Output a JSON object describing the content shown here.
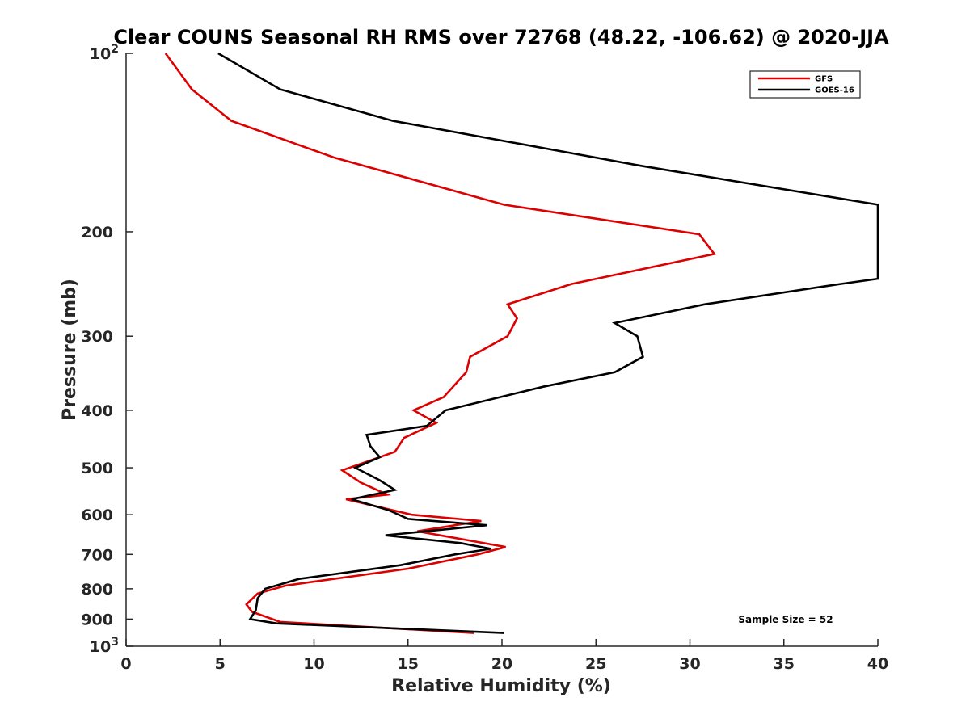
{
  "chart_data": {
    "type": "line",
    "title": "Clear COUNS Seasonal RH RMS over 72768 (48.22, -106.62) @ 2020-JJA",
    "xlabel": "Relative Humidity (%)",
    "ylabel": "Pressure (mb)",
    "xlim": [
      0,
      40
    ],
    "ylim": [
      100,
      1000
    ],
    "yscale": "log",
    "yreversed": true,
    "xticks": [
      0,
      5,
      10,
      15,
      20,
      25,
      30,
      35,
      40
    ],
    "yticks": [
      {
        "value": 100,
        "label": "10",
        "sup": "2"
      },
      {
        "value": 200,
        "label": "200",
        "sup": ""
      },
      {
        "value": 300,
        "label": "300",
        "sup": ""
      },
      {
        "value": 400,
        "label": "400",
        "sup": ""
      },
      {
        "value": 500,
        "label": "500",
        "sup": ""
      },
      {
        "value": 600,
        "label": "600",
        "sup": ""
      },
      {
        "value": 700,
        "label": "700",
        "sup": ""
      },
      {
        "value": 800,
        "label": "800",
        "sup": ""
      },
      {
        "value": 900,
        "label": "900",
        "sup": ""
      },
      {
        "value": 1000,
        "label": "10",
        "sup": "3"
      }
    ],
    "grid": false,
    "legend_position": "top-right",
    "annotation": "Sample Size = 52",
    "series": [
      {
        "name": "GFS",
        "color": "#dd0000",
        "x": [
          2.1,
          3.5,
          5.6,
          11.1,
          20.1,
          30.5,
          31.3,
          23.7,
          20.3,
          20.8,
          20.3,
          18.3,
          18.1,
          16.9,
          15.3,
          16.5,
          14.8,
          14.3,
          11.5,
          12.5,
          13.9,
          11.7,
          15.2,
          18.9,
          15.5,
          20.2,
          18.7,
          15.0,
          8.5,
          7.0,
          6.4,
          6.7,
          8.2,
          18.5
        ],
        "y": [
          100,
          115,
          130,
          150,
          180,
          202,
          218,
          245,
          265,
          280,
          300,
          325,
          345,
          380,
          400,
          420,
          445,
          470,
          505,
          530,
          555,
          565,
          600,
          615,
          640,
          680,
          700,
          740,
          790,
          815,
          850,
          875,
          910,
          950
        ]
      },
      {
        "name": "GOES-16",
        "color": "#000000",
        "x": [
          4.9,
          8.2,
          14.2,
          27.5,
          40.0,
          40.0,
          38.0,
          30.8,
          26.0,
          27.2,
          27.5,
          26.0,
          22.2,
          17.0,
          16.0,
          12.8,
          13.0,
          13.5,
          12.2,
          13.5,
          14.3,
          12.0,
          14.0,
          15.0,
          19.2,
          13.8,
          17.8,
          19.4,
          17.5,
          14.6,
          9.2,
          7.4,
          7.0,
          6.9,
          6.6,
          8.0,
          20.1
        ],
        "y": [
          100,
          115,
          130,
          155,
          180,
          240,
          245,
          265,
          285,
          300,
          325,
          345,
          365,
          400,
          425,
          440,
          460,
          480,
          500,
          525,
          545,
          565,
          590,
          610,
          625,
          650,
          670,
          685,
          700,
          730,
          770,
          800,
          830,
          870,
          900,
          915,
          950
        ]
      }
    ]
  }
}
